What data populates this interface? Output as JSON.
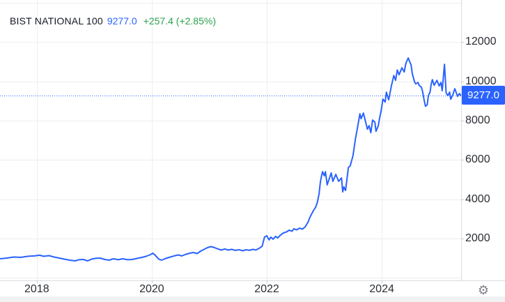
{
  "header": {
    "title": "BIST NATIONAL 100",
    "price": "9277.0",
    "change": "+257.4 (+2.85%)"
  },
  "icons": {
    "axis_settings": "gear-icon"
  },
  "colors": {
    "accent_blue": "#2962ff",
    "up_green": "#2aa24e",
    "grid": "#eceef1",
    "axis_line": "#d9dbe0",
    "tick": "#c9ccd2",
    "axis_text": "#2a2d33",
    "title_text": "#131722",
    "badge_bg": "#2962ff",
    "badge_text": "#ffffff",
    "gear_gray": "#7e818c",
    "bottom_strip": "#f1f2f4",
    "background": "#ffffff"
  },
  "chart_data": {
    "type": "line",
    "title": "BIST NATIONAL 100",
    "grid": true,
    "legend_position": "top-left",
    "x_axis": {
      "range_years": [
        2017.36,
        2025.38
      ],
      "ticks": [
        {
          "year": 2018,
          "label": "2018"
        },
        {
          "year": 2020,
          "label": "2020"
        },
        {
          "year": 2022,
          "label": "2022"
        },
        {
          "year": 2024,
          "label": "2024"
        }
      ]
    },
    "y_axis": {
      "side": "right",
      "range": [
        -130,
        14140
      ],
      "ticks": [
        {
          "value": 0,
          "label": ""
        },
        {
          "value": 2000,
          "label": "2000"
        },
        {
          "value": 4000,
          "label": "4000"
        },
        {
          "value": 6000,
          "label": "6000"
        },
        {
          "value": 8000,
          "label": "8000"
        },
        {
          "value": 10000,
          "label": "10000"
        },
        {
          "value": 12000,
          "label": "12000"
        },
        {
          "value": 14000,
          "label": ""
        }
      ]
    },
    "last_price": 9277.0,
    "last_price_label": "9277.0",
    "series": [
      {
        "name": "BIST NATIONAL 100",
        "color": "#2962ff",
        "points": [
          [
            2017.36,
            970
          ],
          [
            2017.48,
            1005
          ],
          [
            2017.6,
            1060
          ],
          [
            2017.72,
            1040
          ],
          [
            2017.84,
            1095
          ],
          [
            2017.96,
            1115
          ],
          [
            2018.05,
            1150
          ],
          [
            2018.12,
            1095
          ],
          [
            2018.21,
            1130
          ],
          [
            2018.3,
            1060
          ],
          [
            2018.39,
            1005
          ],
          [
            2018.47,
            955
          ],
          [
            2018.57,
            900
          ],
          [
            2018.67,
            865
          ],
          [
            2018.73,
            920
          ],
          [
            2018.81,
            935
          ],
          [
            2018.88,
            865
          ],
          [
            2018.96,
            955
          ],
          [
            2019.03,
            990
          ],
          [
            2019.1,
            1005
          ],
          [
            2019.18,
            935
          ],
          [
            2019.26,
            900
          ],
          [
            2019.33,
            970
          ],
          [
            2019.42,
            920
          ],
          [
            2019.49,
            970
          ],
          [
            2019.58,
            920
          ],
          [
            2019.66,
            935
          ],
          [
            2019.75,
            990
          ],
          [
            2019.83,
            1040
          ],
          [
            2019.9,
            1095
          ],
          [
            2019.98,
            1185
          ],
          [
            2020.02,
            1255
          ],
          [
            2020.07,
            1115
          ],
          [
            2020.12,
            955
          ],
          [
            2020.17,
            900
          ],
          [
            2020.23,
            970
          ],
          [
            2020.3,
            1040
          ],
          [
            2020.39,
            1115
          ],
          [
            2020.46,
            1165
          ],
          [
            2020.52,
            1115
          ],
          [
            2020.58,
            1185
          ],
          [
            2020.64,
            1235
          ],
          [
            2020.72,
            1290
          ],
          [
            2020.79,
            1235
          ],
          [
            2020.85,
            1360
          ],
          [
            2020.91,
            1450
          ],
          [
            2020.97,
            1540
          ],
          [
            2021.03,
            1590
          ],
          [
            2021.09,
            1540
          ],
          [
            2021.15,
            1470
          ],
          [
            2021.21,
            1415
          ],
          [
            2021.27,
            1470
          ],
          [
            2021.33,
            1415
          ],
          [
            2021.39,
            1450
          ],
          [
            2021.45,
            1400
          ],
          [
            2021.52,
            1430
          ],
          [
            2021.58,
            1380
          ],
          [
            2021.64,
            1430
          ],
          [
            2021.7,
            1400
          ],
          [
            2021.76,
            1450
          ],
          [
            2021.81,
            1415
          ],
          [
            2021.87,
            1505
          ],
          [
            2021.92,
            1610
          ],
          [
            2021.96,
            2070
          ],
          [
            2022.0,
            2140
          ],
          [
            2022.04,
            1930
          ],
          [
            2022.07,
            2070
          ],
          [
            2022.11,
            1965
          ],
          [
            2022.15,
            2105
          ],
          [
            2022.19,
            2035
          ],
          [
            2022.24,
            2180
          ],
          [
            2022.29,
            2285
          ],
          [
            2022.34,
            2335
          ],
          [
            2022.39,
            2425
          ],
          [
            2022.44,
            2370
          ],
          [
            2022.47,
            2495
          ],
          [
            2022.52,
            2445
          ],
          [
            2022.57,
            2530
          ],
          [
            2022.62,
            2480
          ],
          [
            2022.67,
            2605
          ],
          [
            2022.72,
            2850
          ],
          [
            2022.76,
            3135
          ],
          [
            2022.81,
            3420
          ],
          [
            2022.85,
            3595
          ],
          [
            2022.88,
            3845
          ],
          [
            2022.91,
            4270
          ],
          [
            2022.93,
            4835
          ],
          [
            2022.95,
            5155
          ],
          [
            2022.97,
            5405
          ],
          [
            2023.0,
            5190
          ],
          [
            2023.02,
            5405
          ],
          [
            2023.05,
            4730
          ],
          [
            2023.08,
            4980
          ],
          [
            2023.12,
            5335
          ],
          [
            2023.15,
            4910
          ],
          [
            2023.2,
            5265
          ],
          [
            2023.25,
            4910
          ],
          [
            2023.3,
            5085
          ],
          [
            2023.32,
            4375
          ],
          [
            2023.34,
            4625
          ],
          [
            2023.37,
            4450
          ],
          [
            2023.42,
            5620
          ],
          [
            2023.45,
            5690
          ],
          [
            2023.5,
            6220
          ],
          [
            2023.54,
            7035
          ],
          [
            2023.58,
            7675
          ],
          [
            2023.62,
            8350
          ],
          [
            2023.64,
            8100
          ],
          [
            2023.68,
            8385
          ],
          [
            2023.75,
            7565
          ],
          [
            2023.78,
            7745
          ],
          [
            2023.81,
            7390
          ],
          [
            2023.84,
            8030
          ],
          [
            2023.88,
            7920
          ],
          [
            2023.9,
            7460
          ],
          [
            2023.94,
            7745
          ],
          [
            2023.96,
            8100
          ],
          [
            2023.99,
            8525
          ],
          [
            2024.02,
            9095
          ],
          [
            2024.06,
            8950
          ],
          [
            2024.08,
            9450
          ],
          [
            2024.12,
            9060
          ],
          [
            2024.17,
            9800
          ],
          [
            2024.21,
            10300
          ],
          [
            2024.24,
            10050
          ],
          [
            2024.27,
            10580
          ],
          [
            2024.3,
            10335
          ],
          [
            2024.35,
            10690
          ],
          [
            2024.39,
            10475
          ],
          [
            2024.42,
            10935
          ],
          [
            2024.46,
            11185
          ],
          [
            2024.48,
            11040
          ],
          [
            2024.51,
            10830
          ],
          [
            2024.53,
            10405
          ],
          [
            2024.57,
            9980
          ],
          [
            2024.59,
            9870
          ],
          [
            2024.63,
            9940
          ],
          [
            2024.65,
            9800
          ],
          [
            2024.69,
            9695
          ],
          [
            2024.71,
            9480
          ],
          [
            2024.74,
            8985
          ],
          [
            2024.76,
            8735
          ],
          [
            2024.79,
            8810
          ],
          [
            2024.81,
            9270
          ],
          [
            2024.84,
            9450
          ],
          [
            2024.86,
            9870
          ],
          [
            2024.88,
            10085
          ],
          [
            2024.91,
            9800
          ],
          [
            2024.96,
            10050
          ],
          [
            2025.0,
            9765
          ],
          [
            2025.03,
            9945
          ],
          [
            2025.05,
            9520
          ],
          [
            2025.09,
            10865
          ],
          [
            2025.12,
            9415
          ],
          [
            2025.15,
            9270
          ],
          [
            2025.18,
            9450
          ],
          [
            2025.2,
            9090
          ],
          [
            2025.24,
            9340
          ],
          [
            2025.27,
            9625
          ],
          [
            2025.32,
            9235
          ],
          [
            2025.35,
            9375
          ],
          [
            2025.38,
            9277
          ]
        ]
      }
    ]
  }
}
